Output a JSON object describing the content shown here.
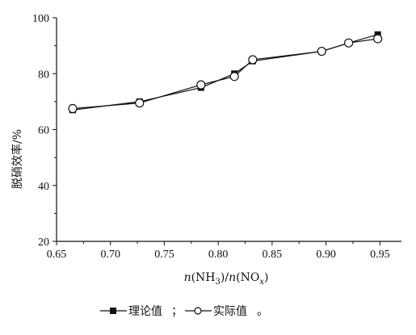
{
  "chart_data": {
    "type": "line",
    "xlabel_parts": {
      "n1": "n",
      "mid": "(NH",
      "sub1": "3",
      "mid2": ")/",
      "n2": "n",
      "mid3": "(NO",
      "sub2": "x",
      "end": ")"
    },
    "ylabel": "脱硝效率/%",
    "xlim": [
      0.65,
      0.97
    ],
    "ylim": [
      20,
      100
    ],
    "x_ticks": [
      "0.65",
      "0.70",
      "0.75",
      "0.80",
      "0.85",
      "0.90",
      "0.95"
    ],
    "y_ticks": [
      "20",
      "40",
      "60",
      "80",
      "100"
    ],
    "grid": false,
    "series": [
      {
        "name": "理论值",
        "marker": "square-filled",
        "x": [
          0.665,
          0.727,
          0.784,
          0.815,
          0.832,
          0.896,
          0.921,
          0.948
        ],
        "y": [
          67.0,
          70.0,
          75.0,
          80.0,
          84.5,
          88.0,
          91.0,
          94.0
        ]
      },
      {
        "name": "实际值",
        "marker": "circle-open",
        "x": [
          0.665,
          0.727,
          0.784,
          0.815,
          0.832,
          0.896,
          0.921,
          0.948
        ],
        "y": [
          67.5,
          69.5,
          76.0,
          79.0,
          85.0,
          88.0,
          91.0,
          92.5
        ]
      }
    ],
    "legend": {
      "placement": "bottom-center",
      "separator": "；",
      "end": "。"
    }
  }
}
